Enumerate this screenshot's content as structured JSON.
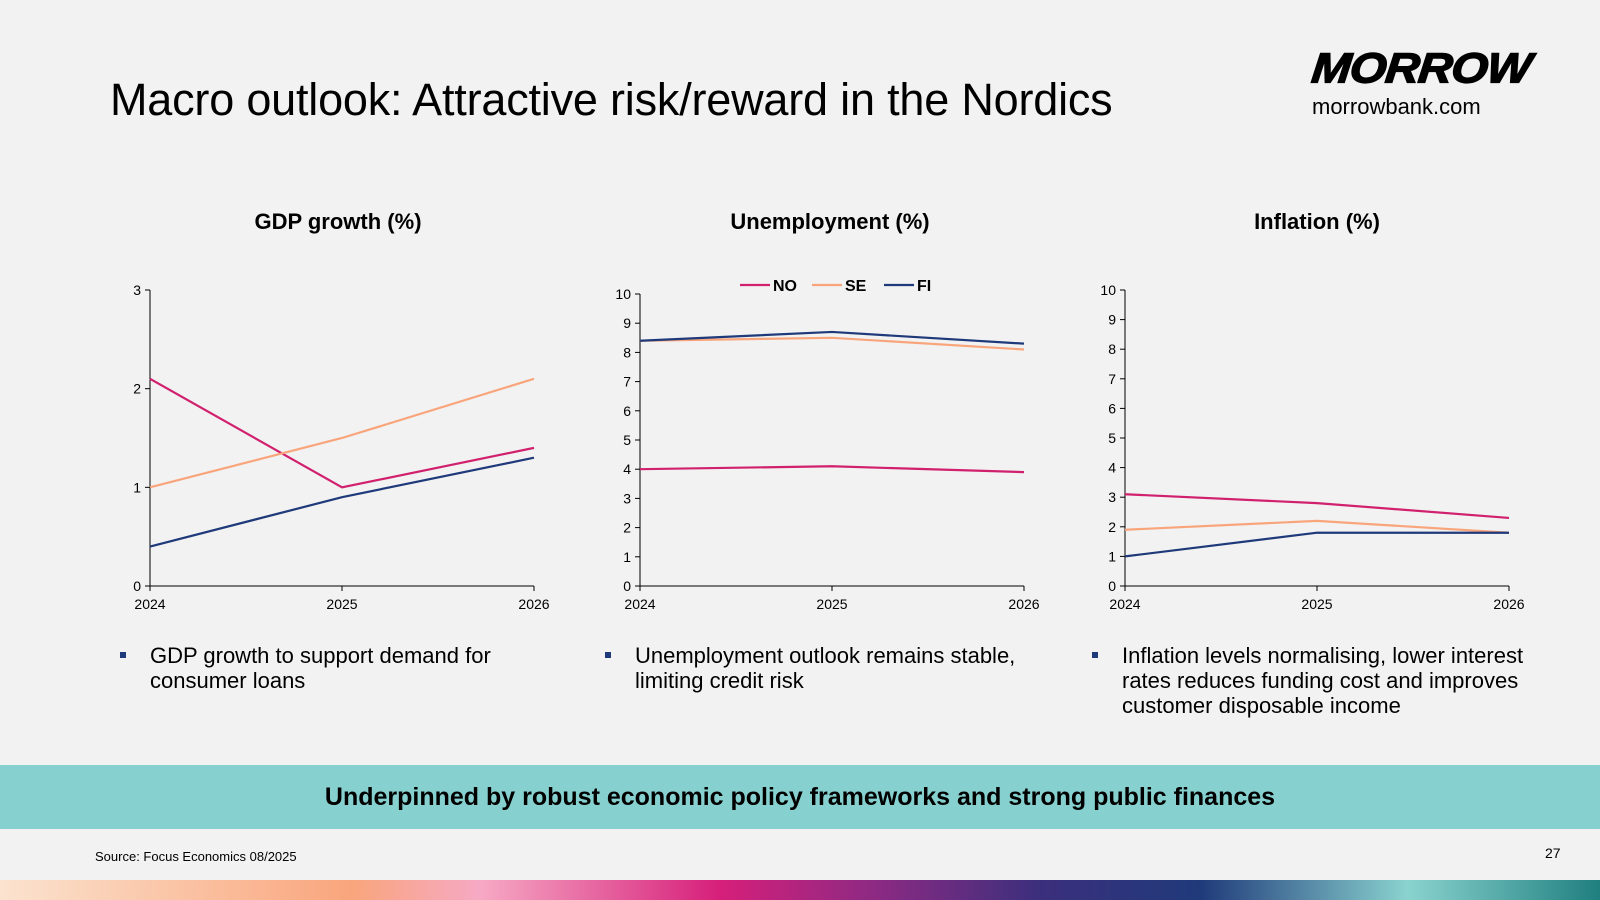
{
  "title": "Macro outlook: Attractive risk/reward in the Nordics",
  "logo": {
    "text": "MORROW",
    "url": "morrowbank.com"
  },
  "colors": {
    "NO": "#d1206e",
    "SE": "#f9a57c",
    "FI": "#1f3a7a",
    "banner": "#86d1d0"
  },
  "legend": [
    "NO",
    "SE",
    "FI"
  ],
  "chart_data": [
    {
      "type": "line",
      "title": "GDP growth (%)",
      "x": [
        "2024",
        "2025",
        "2026"
      ],
      "ylim": [
        0,
        3
      ],
      "yticks": [
        0,
        1,
        2,
        3
      ],
      "series": [
        {
          "name": "NO",
          "values": [
            2.1,
            1.0,
            1.4
          ]
        },
        {
          "name": "SE",
          "values": [
            1.0,
            1.5,
            2.1
          ]
        },
        {
          "name": "FI",
          "values": [
            0.4,
            0.9,
            1.3
          ]
        }
      ]
    },
    {
      "type": "line",
      "title": "Unemployment (%)",
      "x": [
        "2024",
        "2025",
        "2026"
      ],
      "ylim": [
        0,
        10
      ],
      "yticks": [
        0,
        1,
        2,
        3,
        4,
        5,
        6,
        7,
        8,
        9,
        10
      ],
      "legend": "top",
      "series": [
        {
          "name": "NO",
          "values": [
            4.0,
            4.1,
            3.9
          ]
        },
        {
          "name": "SE",
          "values": [
            8.4,
            8.5,
            8.1
          ]
        },
        {
          "name": "FI",
          "values": [
            8.4,
            8.7,
            8.3
          ]
        }
      ]
    },
    {
      "type": "line",
      "title": "Inflation (%)",
      "x": [
        "2024",
        "2025",
        "2026"
      ],
      "ylim": [
        0,
        10
      ],
      "yticks": [
        0,
        1,
        2,
        3,
        4,
        5,
        6,
        7,
        8,
        9,
        10
      ],
      "series": [
        {
          "name": "NO",
          "values": [
            3.1,
            2.8,
            2.3
          ]
        },
        {
          "name": "SE",
          "values": [
            1.9,
            2.2,
            1.8
          ]
        },
        {
          "name": "FI",
          "values": [
            1.0,
            1.8,
            1.8
          ]
        }
      ]
    }
  ],
  "bullets": [
    "GDP growth to support demand for consumer loans",
    "Unemployment outlook remains stable, limiting credit risk",
    "Inflation levels normalising, lower interest rates reduces funding cost and improves customer disposable income"
  ],
  "banner": "Underpinned by robust economic policy frameworks and strong public finances",
  "source": "Source: Focus Economics 08/2025",
  "page_number": "27"
}
